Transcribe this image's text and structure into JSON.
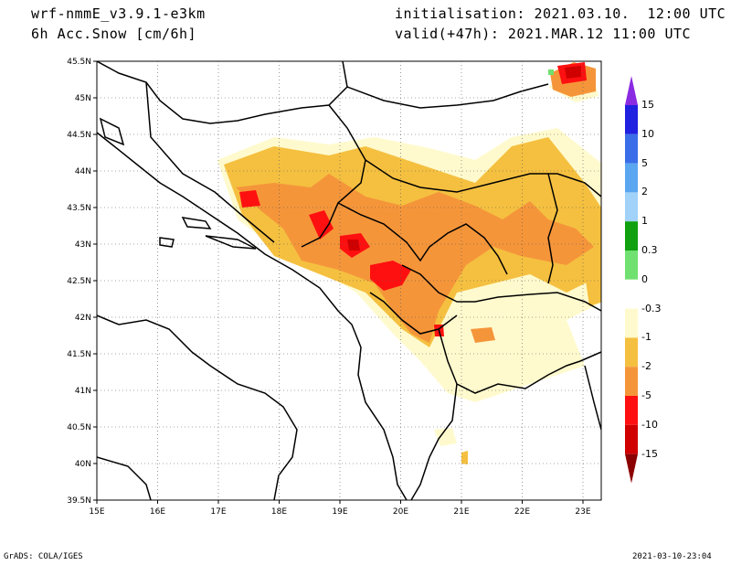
{
  "header": {
    "model": "wrf-nmmE_v3.9.1-e3km",
    "variable": "6h Acc.Snow [cm/6h]",
    "init": "initialisation: 2021.03.10.  12:00 UTC",
    "valid": "valid(+47h): 2021.MAR.12 11:00 UTC"
  },
  "axes": {
    "lat_labels": [
      "45.5N",
      "45N",
      "44.5N",
      "44N",
      "43.5N",
      "43N",
      "42.5N",
      "42N",
      "41.5N",
      "41N",
      "40.5N",
      "40N",
      "39.5N"
    ],
    "lon_labels": [
      "15E",
      "16E",
      "17E",
      "18E",
      "19E",
      "20E",
      "21E",
      "22E",
      "23E"
    ]
  },
  "colorbar": {
    "labels": [
      "15",
      "10",
      "5",
      "2",
      "1",
      "0.3",
      "0",
      "-0.3",
      "-1",
      "-2",
      "-5",
      "-10",
      "-15"
    ],
    "colors": [
      "#2020e0",
      "#3a6ee8",
      "#5aa6f0",
      "#a0d2fa",
      "#10a010",
      "#70e070",
      "#ffffff",
      "#fffacd",
      "#f5c040",
      "#f5953a",
      "#ff1010",
      "#d00000",
      "#900000"
    ],
    "arrow_top_color": "#8a2be2",
    "arrow_bottom_color": "#8b0000"
  },
  "footer": {
    "left": "GrADS: COLA/IGES",
    "right": "2021-03-10-23:04"
  }
}
